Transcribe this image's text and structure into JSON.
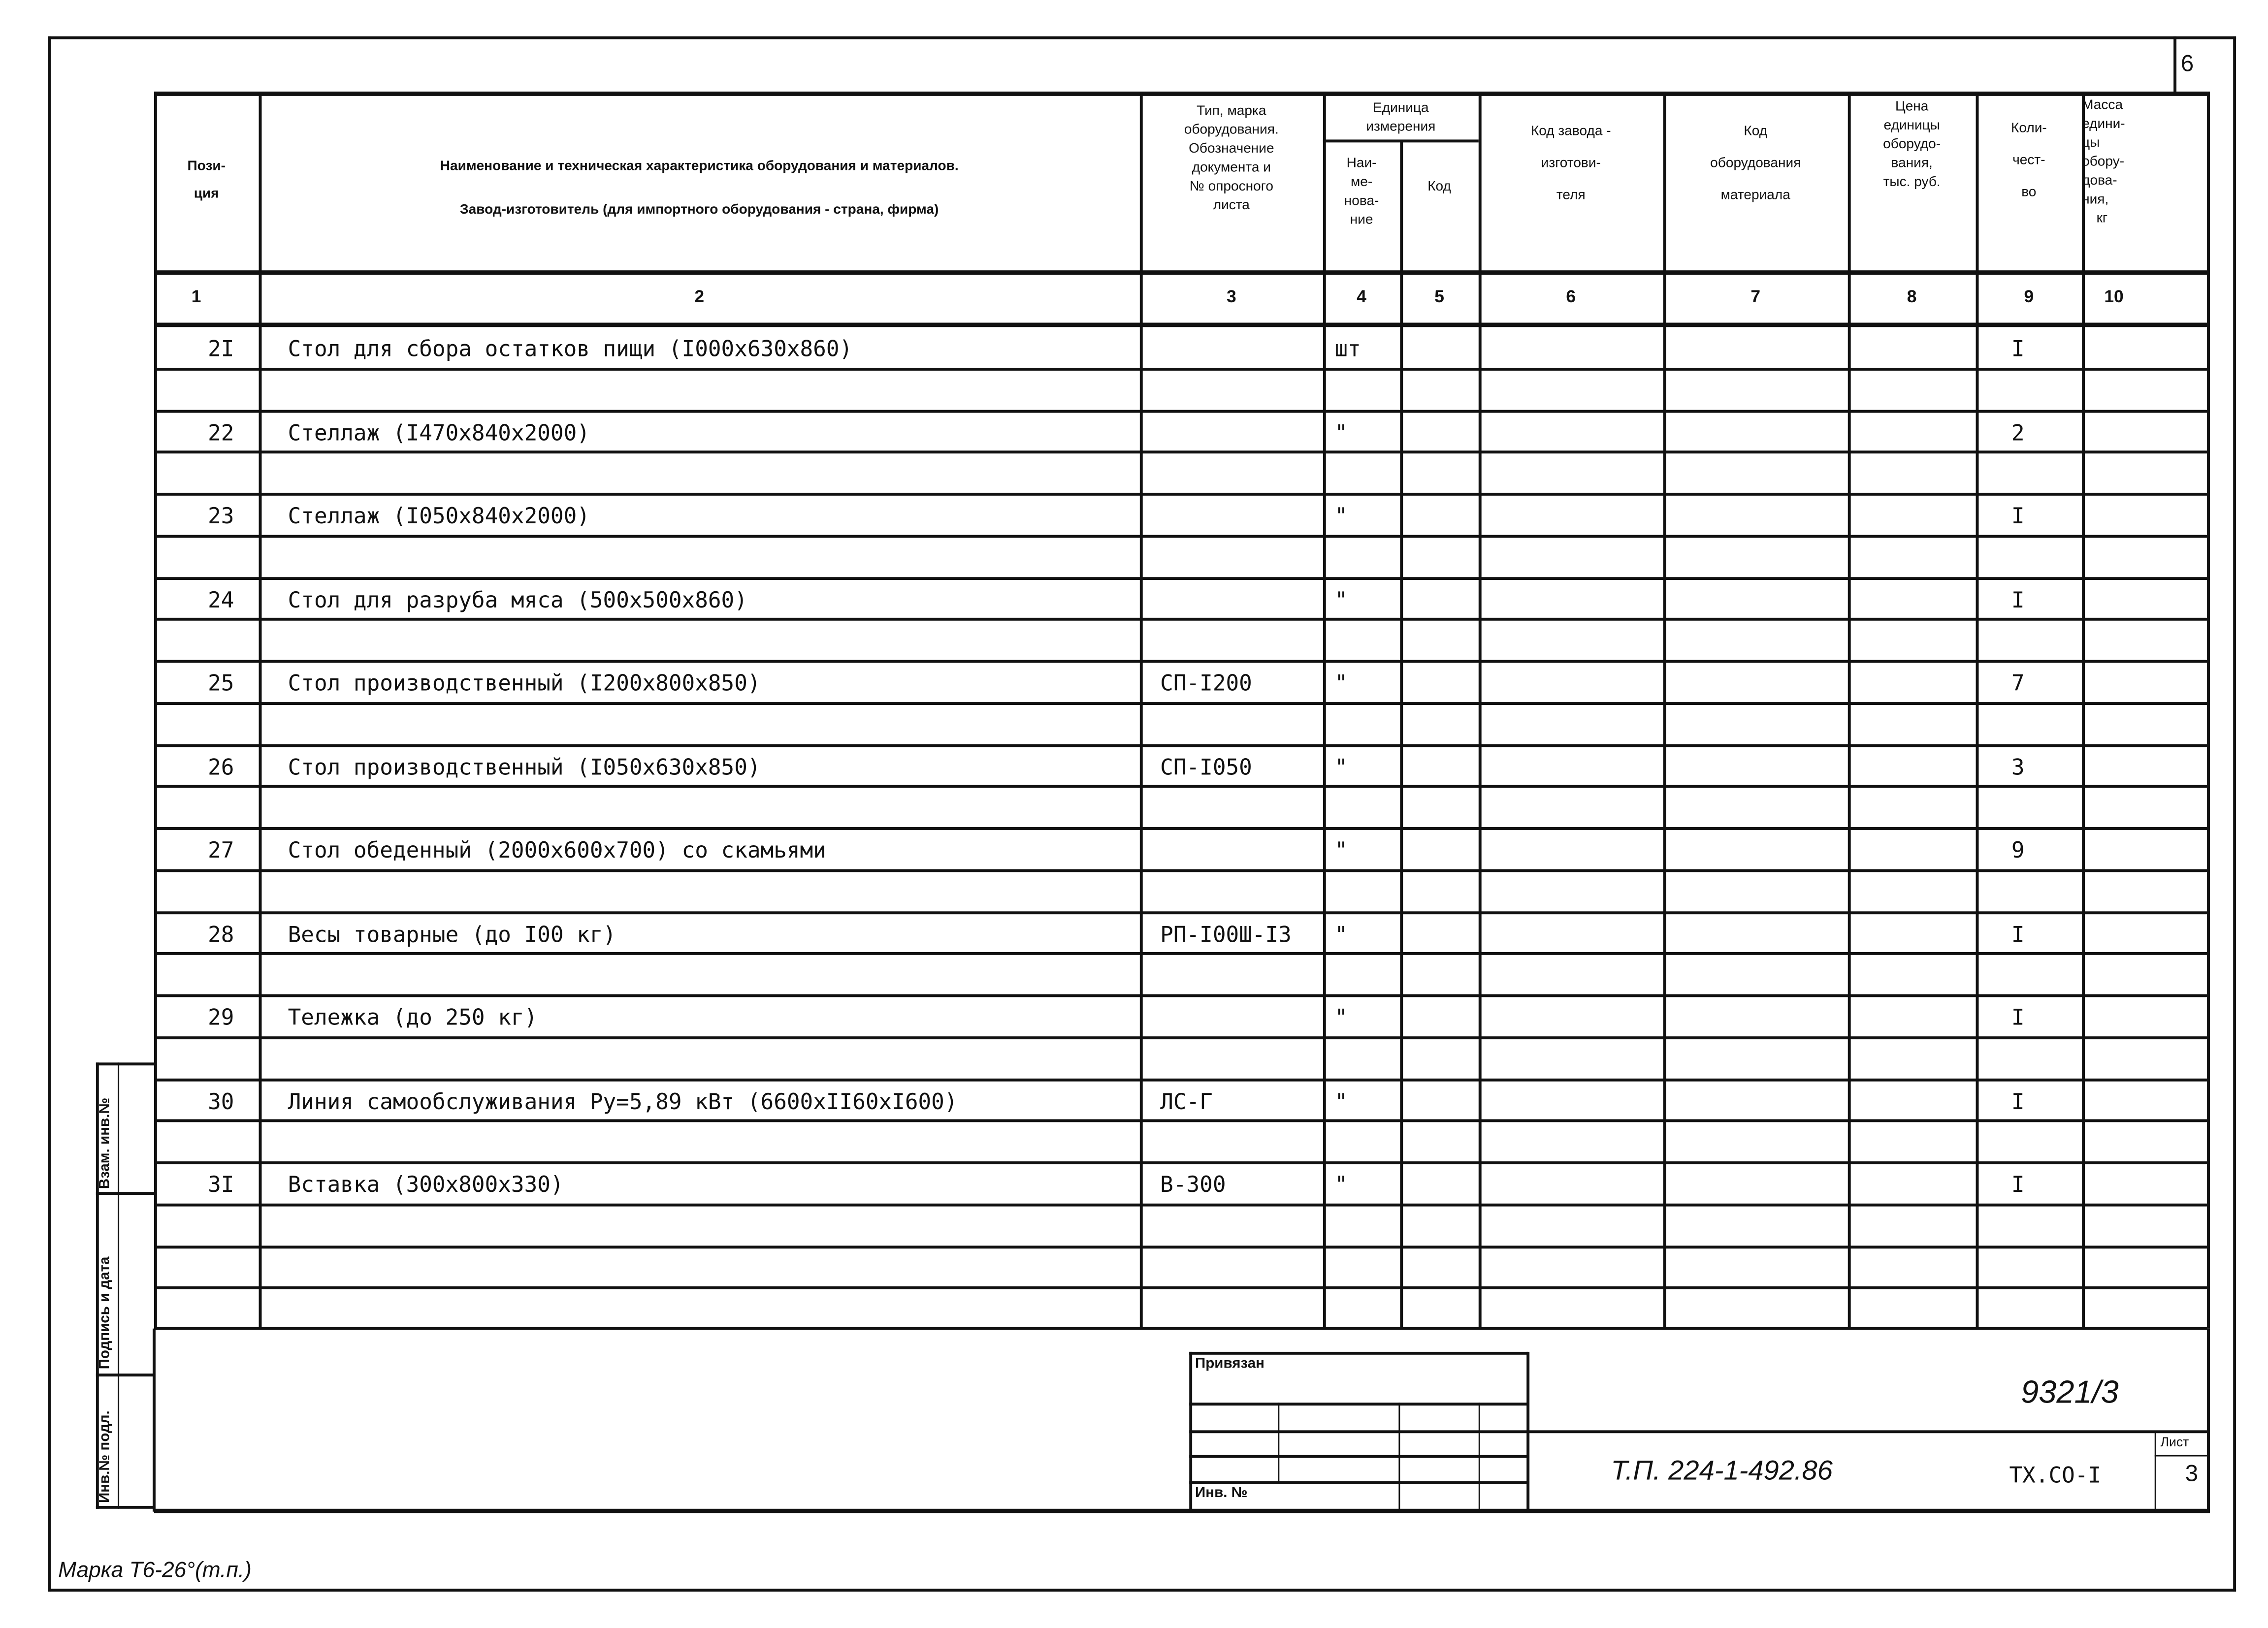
{
  "sheet_number": "6",
  "header": {
    "col1": [
      "Пози-",
      "ция"
    ],
    "col2": [
      "Наименование и техническая характеристика оборудования и материалов.",
      "Завод-изготовитель (для импортного оборудования - страна, фирма)"
    ],
    "col3": [
      "Тип, марка",
      "оборудования.",
      "Обозначение",
      "документа и",
      "№ опросного",
      "листа"
    ],
    "unit_group": [
      "Единица",
      "измерения"
    ],
    "col4": [
      "Наи-",
      "ме-",
      "нова-",
      "ние"
    ],
    "col5": [
      "Код"
    ],
    "col6": [
      "Код завода -",
      "изготови-",
      "теля"
    ],
    "col7": [
      "Код",
      "оборудования",
      "материала"
    ],
    "col8": [
      "Цена",
      "единицы",
      "оборудо-",
      "вания,",
      "тыс. руб."
    ],
    "col9": [
      "Коли-",
      "чест-",
      "во"
    ],
    "col10": [
      "Масса",
      "едини-",
      "цы",
      "обору-",
      "дова-",
      "ния,",
      "кг"
    ]
  },
  "column_numbers": [
    "1",
    "2",
    "3",
    "4",
    "5",
    "6",
    "7",
    "8",
    "9",
    "10"
  ],
  "rows": [
    {
      "pos": "2I",
      "name": "Стол для сбора остатков пищи (I000x630x860)",
      "type": "",
      "unit": "шт",
      "qty": "I"
    },
    {
      "pos": "22",
      "name": "Стеллаж (I470x840x2000)",
      "type": "",
      "unit": "\"",
      "qty": "2"
    },
    {
      "pos": "23",
      "name": "Стеллаж (I050x840x2000)",
      "type": "",
      "unit": "\"",
      "qty": "I"
    },
    {
      "pos": "24",
      "name": "Стол для разруба мяса (500x500x860)",
      "type": "",
      "unit": "\"",
      "qty": "I"
    },
    {
      "pos": "25",
      "name": "Стол производственный (I200x800x850)",
      "type": "СП-I200",
      "unit": "\"",
      "qty": "7"
    },
    {
      "pos": "26",
      "name": "Стол производственный (I050x630x850)",
      "type": "СП-I050",
      "unit": "\"",
      "qty": "3"
    },
    {
      "pos": "27",
      "name": "Стол обеденный (2000x600x700) со скамьями",
      "type": "",
      "unit": "\"",
      "qty": "9"
    },
    {
      "pos": "28",
      "name": "Весы товарные (до I00 кг)",
      "type": "РП-I00Ш-I3",
      "unit": "\"",
      "qty": "I"
    },
    {
      "pos": "29",
      "name": "Тележка (до 250 кг)",
      "type": "",
      "unit": "\"",
      "qty": "I"
    },
    {
      "pos": "30",
      "name": "Линия самообслуживания Ру=5,89 кВт (6600xII60xI600)",
      "type": "ЛС-Г",
      "unit": "\"",
      "qty": "I"
    },
    {
      "pos": "3I",
      "name": "Вставка (300x800x330)",
      "type": "В-300",
      "unit": "\"",
      "qty": "I"
    }
  ],
  "side_strip": {
    "replace_inv": "Взам. инв.№",
    "signature_date": "Подпись и дата",
    "inv_orig": "Инв.№ подл."
  },
  "stamp": {
    "attached": "Привязан",
    "inv_no": "Инв. №",
    "order_no": "9321/3",
    "doc_code": "Т.П. 224-1-492.86",
    "sheet_code": "ТХ.СО-I",
    "sheet_label": "Лист",
    "sheet_value": "3"
  },
  "footer_mark": "Марка Т6-26°(т.п.)"
}
